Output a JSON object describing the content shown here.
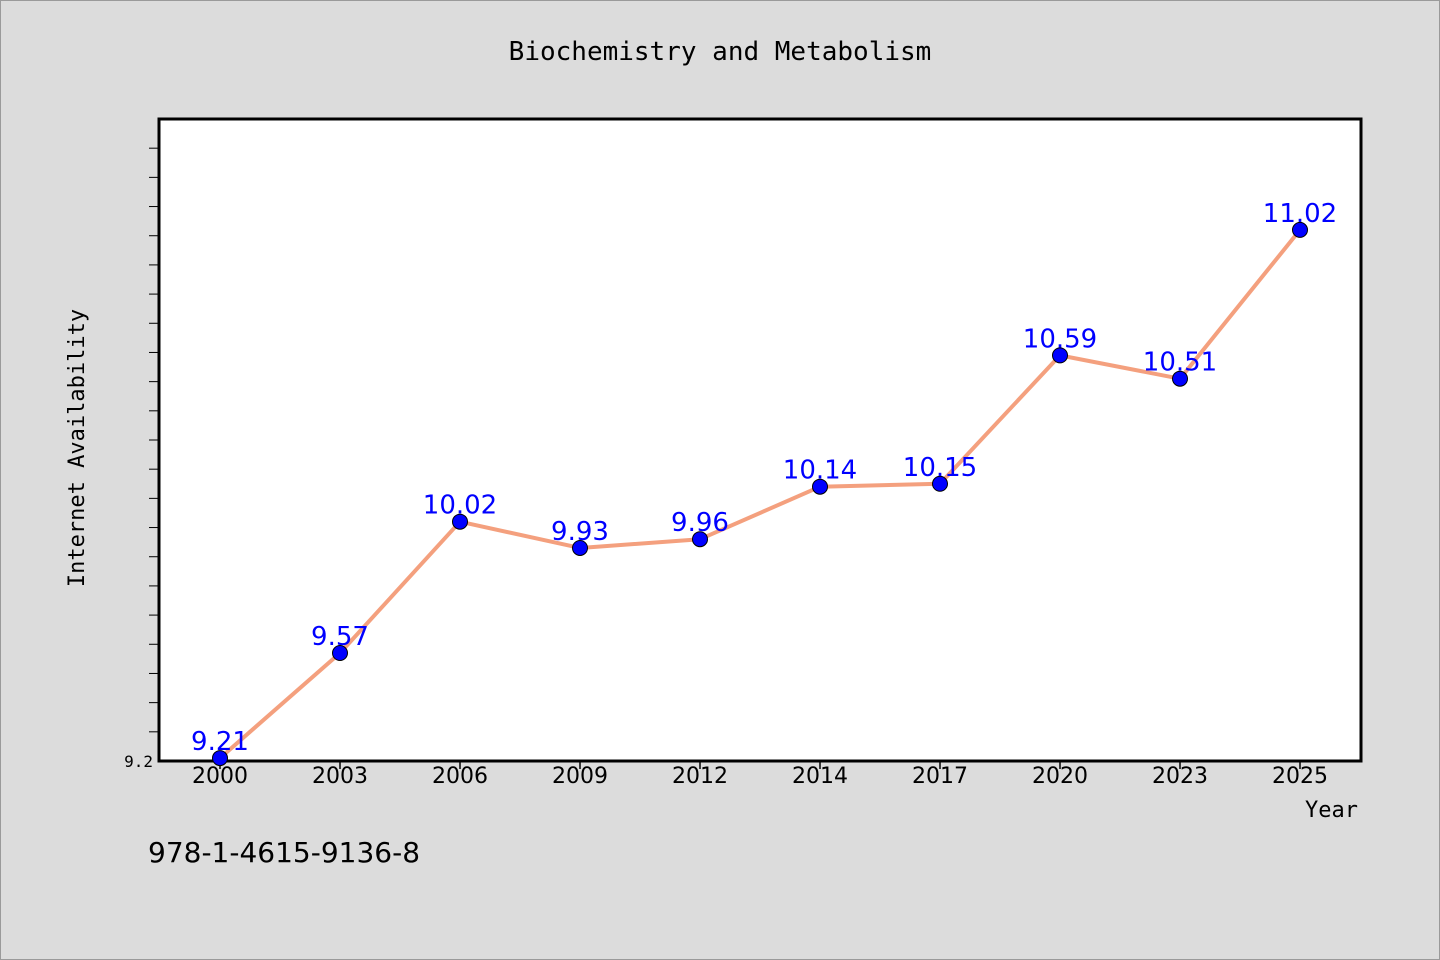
{
  "chart_data": {
    "type": "line",
    "title": "Biochemistry and Metabolism",
    "xlabel": "Year",
    "ylabel": "Internet Availability",
    "categories": [
      "2000",
      "2003",
      "2006",
      "2009",
      "2012",
      "2014",
      "2017",
      "2020",
      "2023",
      "2025"
    ],
    "series": [
      {
        "values": [
          9.21,
          9.57,
          10.02,
          9.93,
          9.96,
          10.14,
          10.15,
          10.59,
          10.51,
          11.02
        ]
      }
    ],
    "data_labels": [
      "9.21",
      "9.57",
      "10.02",
      "9.93",
      "9.96",
      "10.14",
      "10.15",
      "10.59",
      "10.51",
      "11.02"
    ],
    "y_tick_labels": [
      "9.2"
    ],
    "ylim": [
      9.2,
      11.4
    ],
    "grid": false,
    "line_color": "#f4a07e",
    "marker_color": "#0000ff",
    "label_color": "#0000ff"
  },
  "footer_text": "978-1-4615-9136-8"
}
